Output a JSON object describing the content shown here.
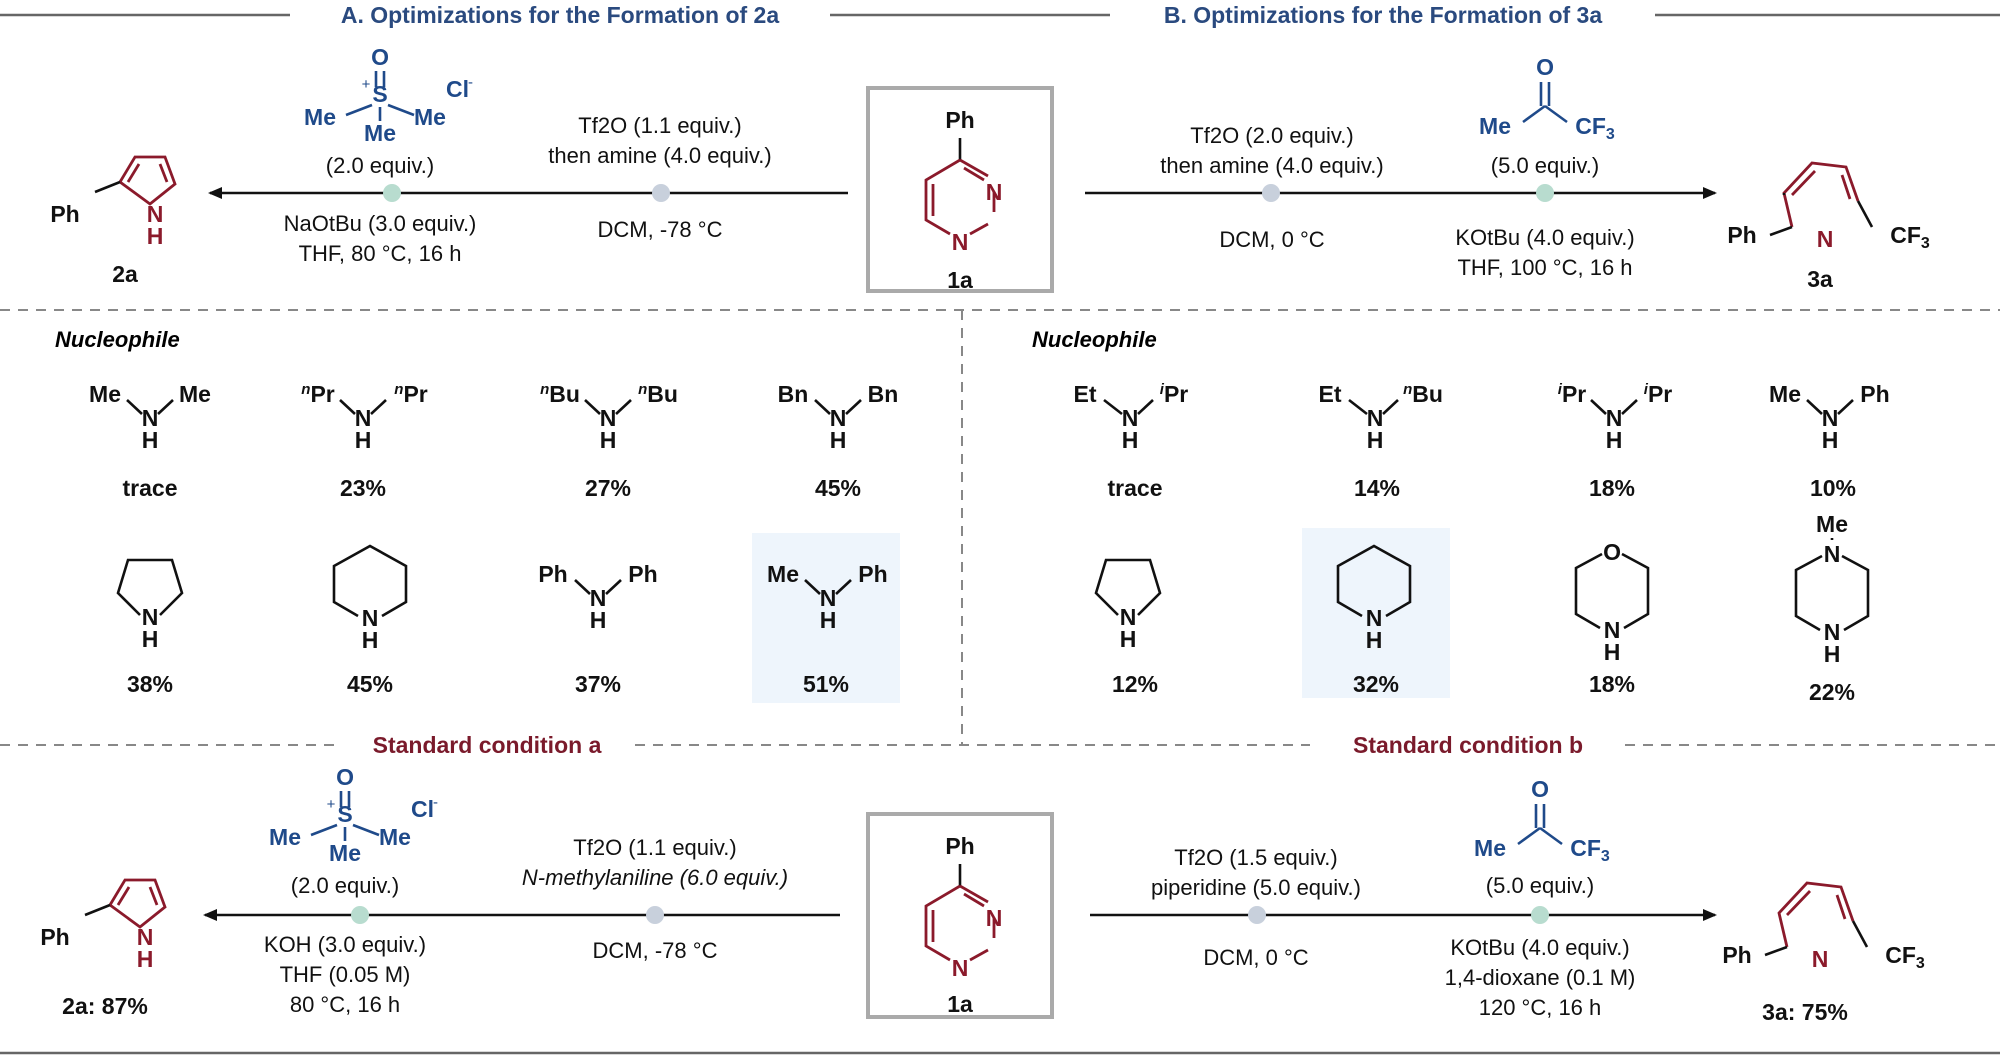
{
  "header_a": "A. Optimizations for the Formation of 2a",
  "header_b": "B. Optimizations for the Formation of 3a",
  "standard_a": "Standard condition a",
  "standard_b": "Standard condition b",
  "nucleophile_label": "Nucleophile",
  "substrate_label": "1a",
  "top_left": {
    "product_label": "2a",
    "reagent_equiv": "(2.0 equiv.)",
    "step1_line1": "Tf2O (1.1 equiv.)",
    "step1_line2": "then amine (4.0 equiv.)",
    "step1_line3": "DCM, -78 °C",
    "step2_base": "NaOtBu (3.0 equiv.)",
    "step2_solvent": "THF, 80 °C, 16 h"
  },
  "top_right": {
    "product_label": "3a",
    "reagent_equiv": "(5.0 equiv.)",
    "step1_line1": "Tf2O (2.0 equiv.)",
    "step1_line2": "then amine (4.0 equiv.)",
    "step1_line3": "DCM, 0 °C",
    "step2_base": "KOtBu (4.0 equiv.)",
    "step2_solvent": "THF, 100 °C, 16 h"
  },
  "yields_a": [
    {
      "amine": "Me2NH",
      "yield": "trace"
    },
    {
      "amine": "nPr2NH",
      "yield": "23%"
    },
    {
      "amine": "nBu2NH",
      "yield": "27%"
    },
    {
      "amine": "Bn2NH",
      "yield": "45%"
    },
    {
      "amine": "pyrrolidine",
      "yield": "38%"
    },
    {
      "amine": "piperidine",
      "yield": "45%"
    },
    {
      "amine": "Ph2NH",
      "yield": "37%"
    },
    {
      "amine": "N-methylaniline",
      "yield": "51%",
      "highlight": true
    }
  ],
  "yields_b": [
    {
      "amine": "Et-iPr-NH",
      "yield": "trace"
    },
    {
      "amine": "Et-nBu-NH",
      "yield": "14%"
    },
    {
      "amine": "iPr2NH",
      "yield": "18%"
    },
    {
      "amine": "N-methylaniline",
      "yield": "10%"
    },
    {
      "amine": "pyrrolidine",
      "yield": "12%"
    },
    {
      "amine": "piperidine",
      "yield": "32%",
      "highlight": true
    },
    {
      "amine": "morpholine",
      "yield": "18%"
    },
    {
      "amine": "N-methylpiperazine",
      "yield": "22%"
    }
  ],
  "bottom_left": {
    "product_yield": "2a: 87%",
    "reagent_equiv": "(2.0 equiv.)",
    "step1_line1": "Tf2O (1.1 equiv.)",
    "step1_line2": "N-methylaniline (6.0 equiv.)",
    "step1_line3": "DCM, -78 °C",
    "step2_base": "KOH (3.0 equiv.)",
    "step2_solvent": "THF (0.05 M)",
    "step2_temp": "80 °C, 16 h"
  },
  "bottom_right": {
    "product_yield": "3a: 75%",
    "reagent_equiv": "(5.0 equiv.)",
    "step1_line1": "Tf2O (1.5 equiv.)",
    "step1_line2": "piperidine (5.0 equiv.)",
    "step1_line3": "DCM, 0 °C",
    "step2_base": "KOtBu (4.0 equiv.)",
    "step2_solvent": "1,4-dioxane (0.1 M)",
    "step2_temp": "120 °C, 16 h"
  },
  "colors": {
    "header_blue": "#2a4a7f",
    "standard_red": "#7a1a2b",
    "ring_red": "#8b1a2b",
    "reagent_blue": "#1f4a8a",
    "highlight_bg": "#eef5fc",
    "dot_a": "#b8dccf",
    "dot_b": "#c8d0dc"
  }
}
